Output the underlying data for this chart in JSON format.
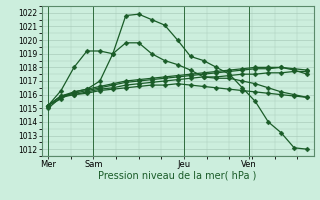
{
  "xlabel": "Pression niveau de la mer( hPa )",
  "ylim": [
    1011.5,
    1022.5
  ],
  "yticks": [
    1012,
    1013,
    1014,
    1015,
    1016,
    1017,
    1018,
    1019,
    1020,
    1021,
    1022
  ],
  "xtick_labels": [
    "Mer",
    "Sam",
    "Jeu",
    "Ven"
  ],
  "bg_color": "#cceedd",
  "line_color": "#1a5c28",
  "grid_color": "#aaccbb",
  "lines": [
    {
      "y": [
        1015.2,
        1015.7,
        1016.2,
        1016.4,
        1017.0,
        1019.0,
        1021.8,
        1021.9,
        1021.5,
        1021.1,
        1020.0,
        1018.8,
        1018.5,
        1018.0,
        1017.5,
        1016.5,
        1015.5,
        1014.0,
        1013.2,
        1012.1,
        1012.0
      ],
      "marker": true
    },
    {
      "y": [
        1015.2,
        1016.3,
        1018.0,
        1019.2,
        1019.2,
        1019.0,
        1019.8,
        1019.8,
        1019.0,
        1018.5,
        1018.2,
        1017.8,
        1017.3,
        1017.2,
        1017.2,
        1017.0,
        1016.8,
        1016.5,
        1016.2,
        1016.0,
        1015.8
      ],
      "marker": true
    },
    {
      "y": [
        1015.2,
        1015.9,
        1016.2,
        1016.4,
        1016.6,
        1016.8,
        1017.0,
        1017.1,
        1017.2,
        1017.3,
        1017.4,
        1017.5,
        1017.6,
        1017.7,
        1017.8,
        1017.9,
        1018.0,
        1018.0,
        1018.0,
        1017.8,
        1017.5
      ],
      "marker": true
    },
    {
      "y": [
        1015.2,
        1015.9,
        1016.1,
        1016.3,
        1016.5,
        1016.7,
        1016.9,
        1017.0,
        1017.1,
        1017.2,
        1017.3,
        1017.4,
        1017.5,
        1017.6,
        1017.7,
        1017.8,
        1017.9,
        1017.9,
        1018.0,
        1017.9,
        1017.8
      ],
      "marker": true
    },
    {
      "y": [
        1015.2,
        1015.9,
        1016.0,
        1016.2,
        1016.4,
        1016.5,
        1016.7,
        1016.8,
        1016.9,
        1017.0,
        1017.1,
        1017.2,
        1017.3,
        1017.3,
        1017.4,
        1017.5,
        1017.5,
        1017.6,
        1017.6,
        1017.7,
        1017.7
      ],
      "marker": true
    },
    {
      "y": [
        1015.0,
        1015.8,
        1016.0,
        1016.1,
        1016.3,
        1016.4,
        1016.5,
        1016.6,
        1016.7,
        1016.7,
        1016.8,
        1016.7,
        1016.6,
        1016.5,
        1016.4,
        1016.3,
        1016.2,
        1016.1,
        1016.0,
        1015.9,
        1015.8
      ],
      "marker": true
    }
  ],
  "marker_symbol": "D",
  "marker_size": 2.5,
  "linewidth": 0.9,
  "n_points": 21,
  "xlabel_fontsize": 7,
  "ytick_fontsize": 5.5,
  "xtick_fontsize": 6,
  "figsize": [
    3.2,
    2.0
  ],
  "dpi": 100
}
